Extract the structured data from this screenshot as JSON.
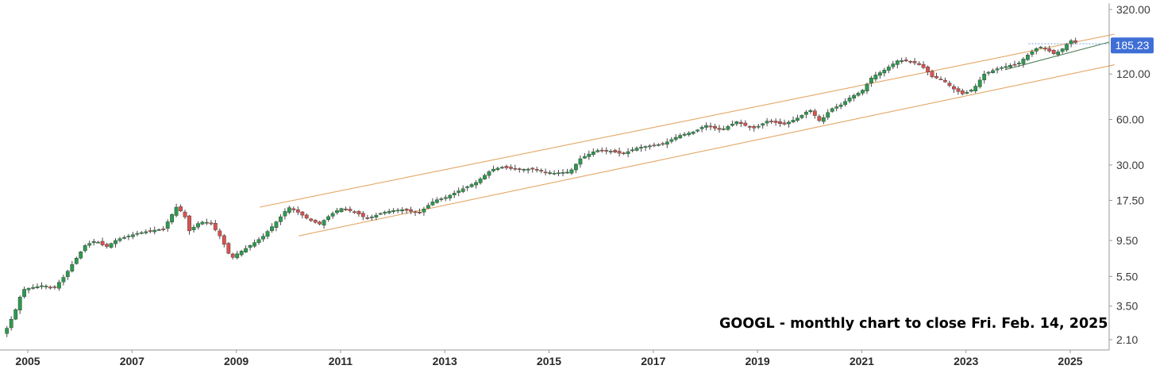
{
  "chart_data": {
    "type": "candlestick",
    "annotation": "GOOGL - monthly chart to close Fri. Feb. 14, 2025",
    "y_scale": "log",
    "ylim": [
      1.9,
      340
    ],
    "xlim": [
      2004.55,
      2025.45
    ],
    "grid": false,
    "legend": "none",
    "last_price_label": "185.23",
    "last_price": 185.23,
    "y_ticks": [
      {
        "value": 320,
        "label": "320.00"
      },
      {
        "value": 120,
        "label": "120.00"
      },
      {
        "value": 60,
        "label": "60.00"
      },
      {
        "value": 30,
        "label": "30.00"
      },
      {
        "value": 17.5,
        "label": "17.50"
      },
      {
        "value": 9.5,
        "label": "9.50"
      },
      {
        "value": 5.5,
        "label": "5.50"
      },
      {
        "value": 3.5,
        "label": "3.50"
      },
      {
        "value": 2.1,
        "label": "2.10"
      }
    ],
    "x_ticks": [
      {
        "value": 2005,
        "label": "2005"
      },
      {
        "value": 2007,
        "label": "2007"
      },
      {
        "value": 2009,
        "label": "2009"
      },
      {
        "value": 2011,
        "label": "2011"
      },
      {
        "value": 2013,
        "label": "2013"
      },
      {
        "value": 2015,
        "label": "2015"
      },
      {
        "value": 2017,
        "label": "2017"
      },
      {
        "value": 2019,
        "label": "2019"
      },
      {
        "value": 2021,
        "label": "2021"
      },
      {
        "value": 2023,
        "label": "2023"
      },
      {
        "value": 2025,
        "label": "2025"
      }
    ],
    "anchors": [
      [
        2004.6,
        2.5
      ],
      [
        2004.75,
        3.2
      ],
      [
        2004.9,
        4.5
      ],
      [
        2005.3,
        4.8
      ],
      [
        2005.5,
        4.6
      ],
      [
        2005.7,
        5.5
      ],
      [
        2005.9,
        7.0
      ],
      [
        2006.1,
        8.8
      ],
      [
        2006.3,
        9.5
      ],
      [
        2006.5,
        8.6
      ],
      [
        2006.7,
        9.6
      ],
      [
        2006.9,
        10.1
      ],
      [
        2007.1,
        10.6
      ],
      [
        2007.4,
        11.1
      ],
      [
        2007.6,
        11.3
      ],
      [
        2007.85,
        15.8
      ],
      [
        2008.0,
        14.2
      ],
      [
        2008.1,
        11.0
      ],
      [
        2008.3,
        12.6
      ],
      [
        2008.5,
        12.5
      ],
      [
        2008.7,
        10.0
      ],
      [
        2008.9,
        7.2
      ],
      [
        2009.0,
        7.7
      ],
      [
        2009.2,
        8.5
      ],
      [
        2009.5,
        10.0
      ],
      [
        2009.8,
        13.0
      ],
      [
        2010.0,
        15.8
      ],
      [
        2010.2,
        14.5
      ],
      [
        2010.4,
        13.0
      ],
      [
        2010.6,
        12.2
      ],
      [
        2010.8,
        14.0
      ],
      [
        2011.0,
        15.5
      ],
      [
        2011.3,
        14.6
      ],
      [
        2011.5,
        13.2
      ],
      [
        2011.8,
        14.5
      ],
      [
        2012.0,
        15.0
      ],
      [
        2012.2,
        15.2
      ],
      [
        2012.5,
        14.4
      ],
      [
        2012.8,
        17.5
      ],
      [
        2013.0,
        18.2
      ],
      [
        2013.3,
        20.5
      ],
      [
        2013.6,
        23.0
      ],
      [
        2013.9,
        28.0
      ],
      [
        2014.1,
        29.0
      ],
      [
        2014.4,
        28.0
      ],
      [
        2014.7,
        28.3
      ],
      [
        2014.9,
        27.0
      ],
      [
        2015.1,
        26.5
      ],
      [
        2015.4,
        27.0
      ],
      [
        2015.6,
        33.0
      ],
      [
        2015.9,
        37.5
      ],
      [
        2016.2,
        37.0
      ],
      [
        2016.4,
        35.5
      ],
      [
        2016.7,
        39.0
      ],
      [
        2016.9,
        40.0
      ],
      [
        2017.2,
        41.5
      ],
      [
        2017.5,
        47.0
      ],
      [
        2017.8,
        50.0
      ],
      [
        2018.0,
        55.0
      ],
      [
        2018.3,
        51.0
      ],
      [
        2018.6,
        58.0
      ],
      [
        2018.8,
        54.0
      ],
      [
        2018.95,
        52.5
      ],
      [
        2019.2,
        59.0
      ],
      [
        2019.5,
        55.5
      ],
      [
        2019.8,
        62.0
      ],
      [
        2020.0,
        70.0
      ],
      [
        2020.2,
        58.0
      ],
      [
        2020.4,
        70.0
      ],
      [
        2020.6,
        75.0
      ],
      [
        2020.8,
        85.0
      ],
      [
        2021.0,
        92.0
      ],
      [
        2021.2,
        115.0
      ],
      [
        2021.4,
        125.0
      ],
      [
        2021.7,
        148.0
      ],
      [
        2021.95,
        145.0
      ],
      [
        2022.15,
        136.0
      ],
      [
        2022.35,
        115.0
      ],
      [
        2022.55,
        110.0
      ],
      [
        2022.75,
        96.0
      ],
      [
        2022.95,
        88.0
      ],
      [
        2023.15,
        96.0
      ],
      [
        2023.35,
        120.0
      ],
      [
        2023.6,
        130.0
      ],
      [
        2023.85,
        137.0
      ],
      [
        2024.0,
        140.0
      ],
      [
        2024.2,
        162.0
      ],
      [
        2024.4,
        182.0
      ],
      [
        2024.55,
        174.0
      ],
      [
        2024.7,
        162.0
      ],
      [
        2024.85,
        176.0
      ],
      [
        2025.0,
        198.0
      ],
      [
        2025.08,
        203.0
      ],
      [
        2025.12,
        185.23
      ]
    ],
    "trendlines": [
      {
        "role": "channel-upper",
        "color": "#e3a765",
        "from": [
          2009.45,
          15.8
        ],
        "to": [
          2025.85,
          220.0
        ]
      },
      {
        "role": "channel-lower",
        "color": "#e3a765",
        "from": [
          2010.2,
          10.2
        ],
        "to": [
          2025.85,
          138.0
        ]
      },
      {
        "role": "support",
        "color": "#4a7a4f",
        "from": [
          2023.75,
          128.0
        ],
        "to": [
          2025.75,
          195.0
        ]
      },
      {
        "role": "dotted-level",
        "color": "#7a9ee0",
        "from": [
          2024.2,
          190.0
        ],
        "to": [
          2025.85,
          190.0
        ]
      }
    ],
    "colors": {
      "up": "#2d9a4e",
      "down": "#d9534f",
      "wick": "#4a4a4a",
      "axis": "#9a9a9a",
      "price_label_bg": "#3f6fd6",
      "price_label_text": "#ffffff"
    }
  }
}
